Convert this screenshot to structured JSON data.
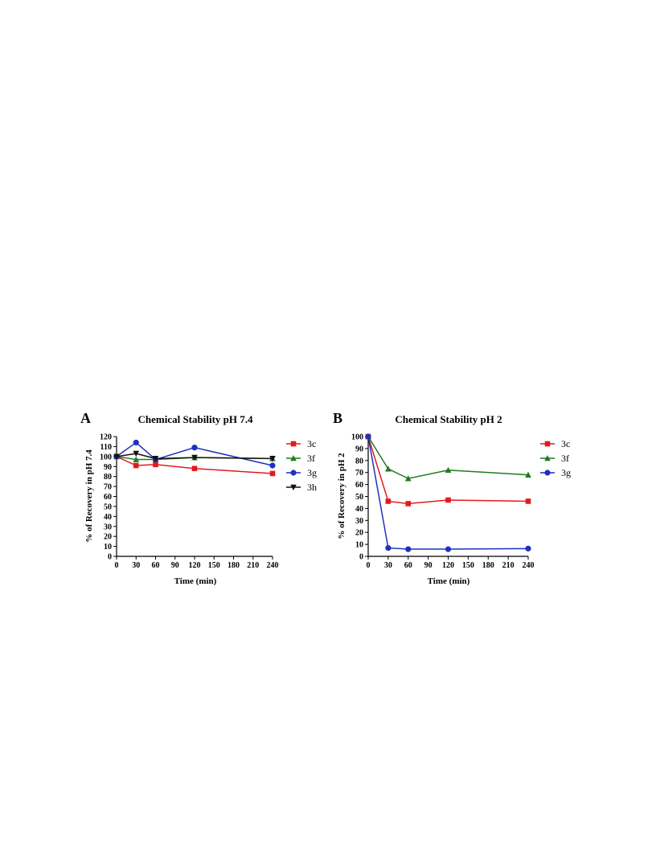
{
  "chart_data": [
    {
      "type": "line",
      "panel_label": "A",
      "title": "Chemical Stability pH 7.4",
      "xlabel": "Time (min)",
      "ylabel": "% of Recovery in pH 7.4",
      "xlim": [
        0,
        240
      ],
      "ylim": [
        0,
        120
      ],
      "x_ticks": [
        0,
        30,
        60,
        90,
        120,
        150,
        180,
        210,
        240
      ],
      "y_ticks": [
        0,
        10,
        20,
        30,
        40,
        50,
        60,
        70,
        80,
        90,
        100,
        110,
        120
      ],
      "grid": false,
      "legend_position": "right",
      "series": [
        {
          "name": "3c",
          "color": "#e31a1c",
          "marker": "square",
          "x": [
            0,
            30,
            60,
            120,
            240
          ],
          "y": [
            100,
            91,
            92,
            88,
            83
          ]
        },
        {
          "name": "3f",
          "color": "#1e7b1e",
          "marker": "triangle-up",
          "x": [
            0,
            30,
            60,
            120,
            240
          ],
          "y": [
            100,
            97,
            97,
            99,
            98
          ]
        },
        {
          "name": "3g",
          "color": "#1f2fbf",
          "marker": "circle",
          "x": [
            0,
            30,
            60,
            120,
            240
          ],
          "y": [
            100,
            114,
            97,
            109,
            91
          ]
        },
        {
          "name": "3h",
          "color": "#111111",
          "marker": "triangle-down",
          "x": [
            0,
            30,
            60,
            120,
            240
          ],
          "y": [
            100,
            103,
            98,
            99,
            98
          ]
        }
      ]
    },
    {
      "type": "line",
      "panel_label": "B",
      "title": "Chemical Stability pH 2",
      "xlabel": "Time (min)",
      "ylabel": "% of Recovery in pH 2",
      "xlim": [
        0,
        240
      ],
      "ylim": [
        0,
        100
      ],
      "x_ticks": [
        0,
        30,
        60,
        90,
        120,
        150,
        180,
        210,
        240
      ],
      "y_ticks": [
        0,
        10,
        20,
        30,
        40,
        50,
        60,
        70,
        80,
        90,
        100
      ],
      "grid": false,
      "legend_position": "right",
      "series": [
        {
          "name": "3c",
          "color": "#e31a1c",
          "marker": "square",
          "x": [
            0,
            30,
            60,
            120,
            240
          ],
          "y": [
            100,
            46,
            44,
            47,
            46
          ]
        },
        {
          "name": "3f",
          "color": "#1e7b1e",
          "marker": "triangle-up",
          "x": [
            0,
            30,
            60,
            120,
            240
          ],
          "y": [
            100,
            73,
            65,
            72,
            68
          ]
        },
        {
          "name": "3g",
          "color": "#1f2fbf",
          "marker": "circle",
          "x": [
            0,
            30,
            60,
            120,
            240
          ],
          "y": [
            100,
            7,
            6,
            6,
            6.5
          ]
        }
      ]
    }
  ]
}
